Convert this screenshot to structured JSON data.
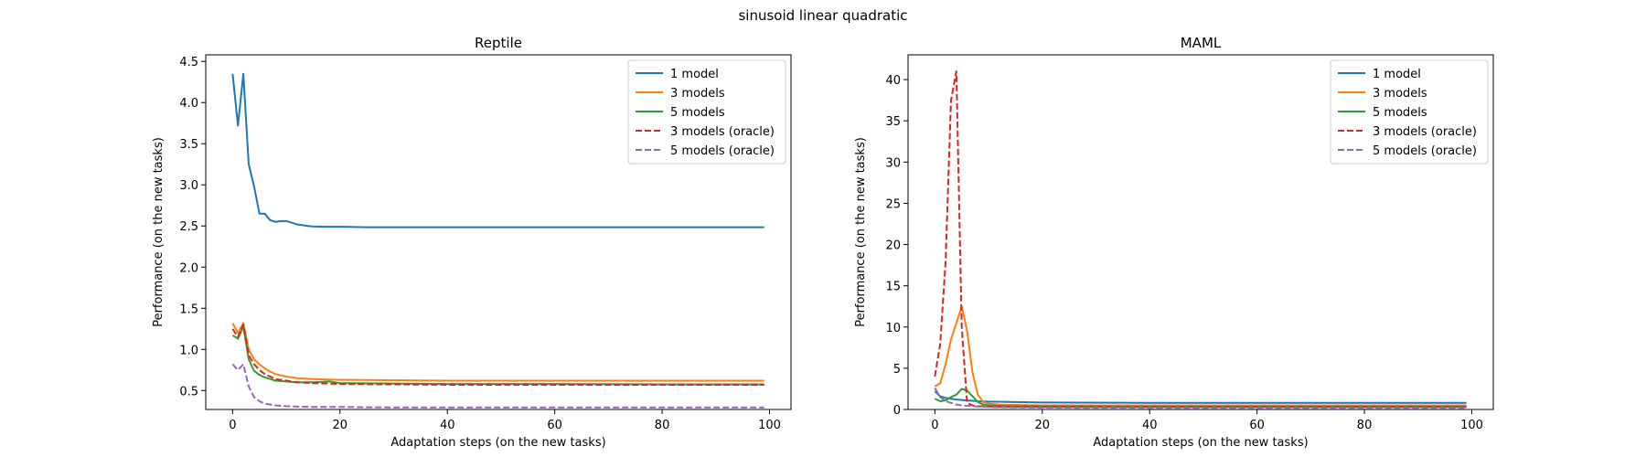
{
  "figure": {
    "suptitle": "sinusoid linear quadratic"
  },
  "colors": {
    "blue": "#1f77b4",
    "orange": "#ff7f0e",
    "green": "#2ca02c",
    "red": "#d62728",
    "purple": "#9467bd"
  },
  "chart_data": [
    {
      "type": "line",
      "title": "Reptile",
      "xlabel": "Adaptation steps (on the new tasks)",
      "ylabel": "Performance (on the new tasks)",
      "xlim": [
        -5,
        104
      ],
      "ylim": [
        0.27,
        4.58
      ],
      "xticks": [
        0,
        20,
        40,
        60,
        80,
        100
      ],
      "xtick_labels": [
        "0",
        "20",
        "40",
        "60",
        "80",
        "100"
      ],
      "yticks": [
        0.5,
        1.0,
        1.5,
        2.0,
        2.5,
        3.0,
        3.5,
        4.0,
        4.5
      ],
      "ytick_labels": [
        "0.5",
        "1.0",
        "1.5",
        "2.0",
        "2.5",
        "3.0",
        "3.5",
        "4.0",
        "4.5"
      ],
      "grid": false,
      "legend": "top-right",
      "series": [
        {
          "name": "1 model",
          "color": "#1f77b4",
          "dashed": false,
          "x": [
            0,
            1,
            2,
            3,
            4,
            5,
            6,
            7,
            8,
            9,
            10,
            11,
            12,
            13,
            14,
            15,
            17,
            20,
            25,
            30,
            40,
            50,
            60,
            70,
            80,
            90,
            99
          ],
          "y": [
            4.35,
            3.72,
            4.35,
            3.25,
            2.98,
            2.65,
            2.65,
            2.57,
            2.55,
            2.56,
            2.56,
            2.54,
            2.52,
            2.51,
            2.5,
            2.495,
            2.49,
            2.49,
            2.485,
            2.485,
            2.485,
            2.485,
            2.485,
            2.485,
            2.485,
            2.485,
            2.485
          ]
        },
        {
          "name": "3 models",
          "color": "#ff7f0e",
          "dashed": false,
          "x": [
            0,
            1,
            2,
            3,
            4,
            5,
            6,
            7,
            8,
            10,
            12,
            15,
            20,
            30,
            40,
            60,
            80,
            99
          ],
          "y": [
            1.32,
            1.2,
            1.32,
            1.0,
            0.88,
            0.82,
            0.77,
            0.73,
            0.7,
            0.67,
            0.65,
            0.64,
            0.63,
            0.625,
            0.62,
            0.62,
            0.62,
            0.62
          ]
        },
        {
          "name": "5 models",
          "color": "#2ca02c",
          "dashed": false,
          "x": [
            0,
            1,
            2,
            3,
            4,
            5,
            6,
            7,
            8,
            10,
            12,
            15,
            18,
            20,
            30,
            40,
            60,
            80,
            99
          ],
          "y": [
            1.17,
            1.13,
            1.28,
            0.88,
            0.74,
            0.69,
            0.66,
            0.64,
            0.62,
            0.61,
            0.6,
            0.6,
            0.61,
            0.59,
            0.585,
            0.58,
            0.58,
            0.575,
            0.575
          ]
        },
        {
          "name": "3 models (oracle)",
          "color": "#d62728",
          "dashed": true,
          "x": [
            0,
            1,
            2,
            3,
            4,
            5,
            6,
            7,
            8,
            10,
            12,
            15,
            20,
            30,
            40,
            60,
            80,
            99
          ],
          "y": [
            1.25,
            1.15,
            1.3,
            0.93,
            0.82,
            0.75,
            0.7,
            0.67,
            0.64,
            0.62,
            0.6,
            0.59,
            0.58,
            0.575,
            0.57,
            0.57,
            0.57,
            0.57
          ]
        },
        {
          "name": "5 models (oracle)",
          "color": "#9467bd",
          "dashed": true,
          "x": [
            0,
            1,
            2,
            3,
            4,
            5,
            6,
            7,
            8,
            10,
            12,
            15,
            20,
            30,
            40,
            60,
            80,
            99
          ],
          "y": [
            0.82,
            0.75,
            0.82,
            0.55,
            0.42,
            0.37,
            0.34,
            0.33,
            0.32,
            0.31,
            0.305,
            0.3,
            0.3,
            0.295,
            0.295,
            0.295,
            0.295,
            0.295
          ]
        }
      ]
    },
    {
      "type": "line",
      "title": "MAML",
      "xlabel": "Adaptation steps (on the new tasks)",
      "ylabel": "Performance (on the new tasks)",
      "xlim": [
        -5,
        104
      ],
      "ylim": [
        0,
        43
      ],
      "xticks": [
        0,
        20,
        40,
        60,
        80,
        100
      ],
      "xtick_labels": [
        "0",
        "20",
        "40",
        "60",
        "80",
        "100"
      ],
      "yticks": [
        0,
        5,
        10,
        15,
        20,
        25,
        30,
        35,
        40
      ],
      "ytick_labels": [
        "0",
        "5",
        "10",
        "15",
        "20",
        "25",
        "30",
        "35",
        "40"
      ],
      "grid": false,
      "legend": "top-right",
      "series": [
        {
          "name": "1 model",
          "color": "#1f77b4",
          "dashed": false,
          "x": [
            0,
            1,
            2,
            3,
            4,
            5,
            6,
            7,
            8,
            10,
            15,
            20,
            40,
            60,
            80,
            99
          ],
          "y": [
            2.2,
            1.6,
            1.4,
            1.3,
            1.2,
            1.15,
            1.1,
            1.05,
            1.0,
            0.95,
            0.9,
            0.85,
            0.8,
            0.8,
            0.8,
            0.8
          ]
        },
        {
          "name": "3 models",
          "color": "#ff7f0e",
          "dashed": false,
          "x": [
            0,
            1,
            2,
            3,
            4,
            5,
            6,
            7,
            8,
            9,
            10,
            12,
            15,
            20,
            40,
            60,
            80,
            99
          ],
          "y": [
            2.8,
            3.2,
            5.5,
            8.5,
            10.5,
            12.5,
            9.5,
            4.5,
            1.8,
            0.9,
            0.7,
            0.6,
            0.55,
            0.5,
            0.5,
            0.5,
            0.5,
            0.5
          ]
        },
        {
          "name": "5 models",
          "color": "#2ca02c",
          "dashed": false,
          "x": [
            0,
            1,
            2,
            3,
            4,
            5,
            6,
            7,
            8,
            9,
            10,
            12,
            15,
            20,
            40,
            60,
            80,
            99
          ],
          "y": [
            1.3,
            1.0,
            1.1,
            1.5,
            1.8,
            2.5,
            2.3,
            1.6,
            0.9,
            0.6,
            0.5,
            0.45,
            0.4,
            0.4,
            0.35,
            0.35,
            0.35,
            0.35
          ]
        },
        {
          "name": "3 models (oracle)",
          "color": "#d62728",
          "dashed": true,
          "x": [
            0,
            1,
            2,
            3,
            4,
            5,
            6,
            7,
            8,
            10,
            15,
            20,
            40,
            60,
            80,
            99
          ],
          "y": [
            4.0,
            8.0,
            18.0,
            37.5,
            41.0,
            10.0,
            0.8,
            0.5,
            0.4,
            0.35,
            0.3,
            0.3,
            0.3,
            0.3,
            0.3,
            0.3
          ]
        },
        {
          "name": "5 models (oracle)",
          "color": "#9467bd",
          "dashed": true,
          "x": [
            0,
            1,
            2,
            3,
            4,
            5,
            6,
            7,
            8,
            10,
            15,
            20,
            40,
            60,
            80,
            99
          ],
          "y": [
            2.6,
            1.5,
            1.0,
            0.8,
            0.6,
            0.5,
            0.45,
            0.4,
            0.35,
            0.3,
            0.25,
            0.22,
            0.2,
            0.2,
            0.2,
            0.2
          ]
        }
      ]
    }
  ]
}
